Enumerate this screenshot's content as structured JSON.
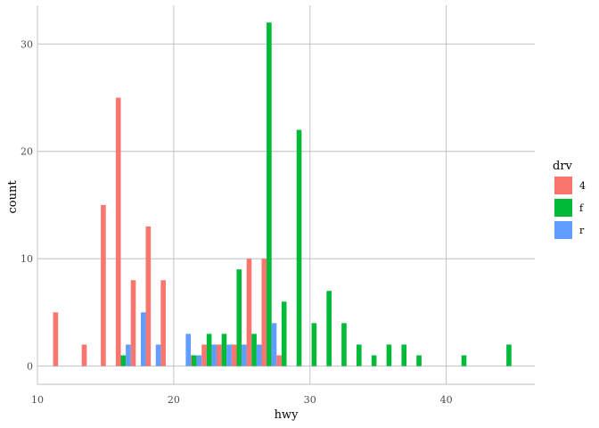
{
  "chart_data": {
    "type": "bar",
    "xlabel": "hwy",
    "ylabel": "count",
    "xlim": [
      10,
      46.5
    ],
    "ylim": [
      -1.7,
      33.6
    ],
    "x_ticks": [
      10,
      20,
      30,
      40
    ],
    "y_ticks": [
      0,
      10,
      20,
      30
    ],
    "grid": true,
    "legend": {
      "title": "drv",
      "position": "right"
    },
    "bin_width": 1.1,
    "series": [
      {
        "name": "4",
        "color": "#F8766D",
        "points": [
          {
            "x": 11.7,
            "y": 5
          },
          {
            "x": 13.8,
            "y": 2
          },
          {
            "x": 15.2,
            "y": 15
          },
          {
            "x": 16.3,
            "y": 25
          },
          {
            "x": 17.4,
            "y": 8
          },
          {
            "x": 18.5,
            "y": 13
          },
          {
            "x": 19.6,
            "y": 8
          },
          {
            "x": 21.5,
            "y": 1
          },
          {
            "x": 22.6,
            "y": 2
          },
          {
            "x": 23.7,
            "y": 2
          },
          {
            "x": 24.8,
            "y": 2
          },
          {
            "x": 25.9,
            "y": 10
          },
          {
            "x": 27.0,
            "y": 10
          },
          {
            "x": 28.1,
            "y": 1
          }
        ]
      },
      {
        "name": "f",
        "color": "#00BA38",
        "points": [
          {
            "x": 16.3,
            "y": 1
          },
          {
            "x": 21.5,
            "y": 1
          },
          {
            "x": 22.6,
            "y": 3
          },
          {
            "x": 23.7,
            "y": 3
          },
          {
            "x": 24.8,
            "y": 9
          },
          {
            "x": 25.9,
            "y": 3
          },
          {
            "x": 27.0,
            "y": 32
          },
          {
            "x": 28.1,
            "y": 6
          },
          {
            "x": 29.2,
            "y": 22
          },
          {
            "x": 30.3,
            "y": 4
          },
          {
            "x": 31.4,
            "y": 7
          },
          {
            "x": 32.5,
            "y": 4
          },
          {
            "x": 33.6,
            "y": 2
          },
          {
            "x": 34.7,
            "y": 1
          },
          {
            "x": 35.8,
            "y": 2
          },
          {
            "x": 36.9,
            "y": 2
          },
          {
            "x": 38.0,
            "y": 1
          },
          {
            "x": 41.3,
            "y": 1
          },
          {
            "x": 44.6,
            "y": 2
          }
        ]
      },
      {
        "name": "r",
        "color": "#619CFF",
        "points": [
          {
            "x": 16.3,
            "y": 2
          },
          {
            "x": 17.4,
            "y": 5
          },
          {
            "x": 18.5,
            "y": 2
          },
          {
            "x": 20.7,
            "y": 3
          },
          {
            "x": 21.5,
            "y": 1
          },
          {
            "x": 22.6,
            "y": 2
          },
          {
            "x": 23.7,
            "y": 2
          },
          {
            "x": 24.8,
            "y": 2
          },
          {
            "x": 25.9,
            "y": 2
          },
          {
            "x": 27.0,
            "y": 4
          }
        ]
      }
    ]
  }
}
